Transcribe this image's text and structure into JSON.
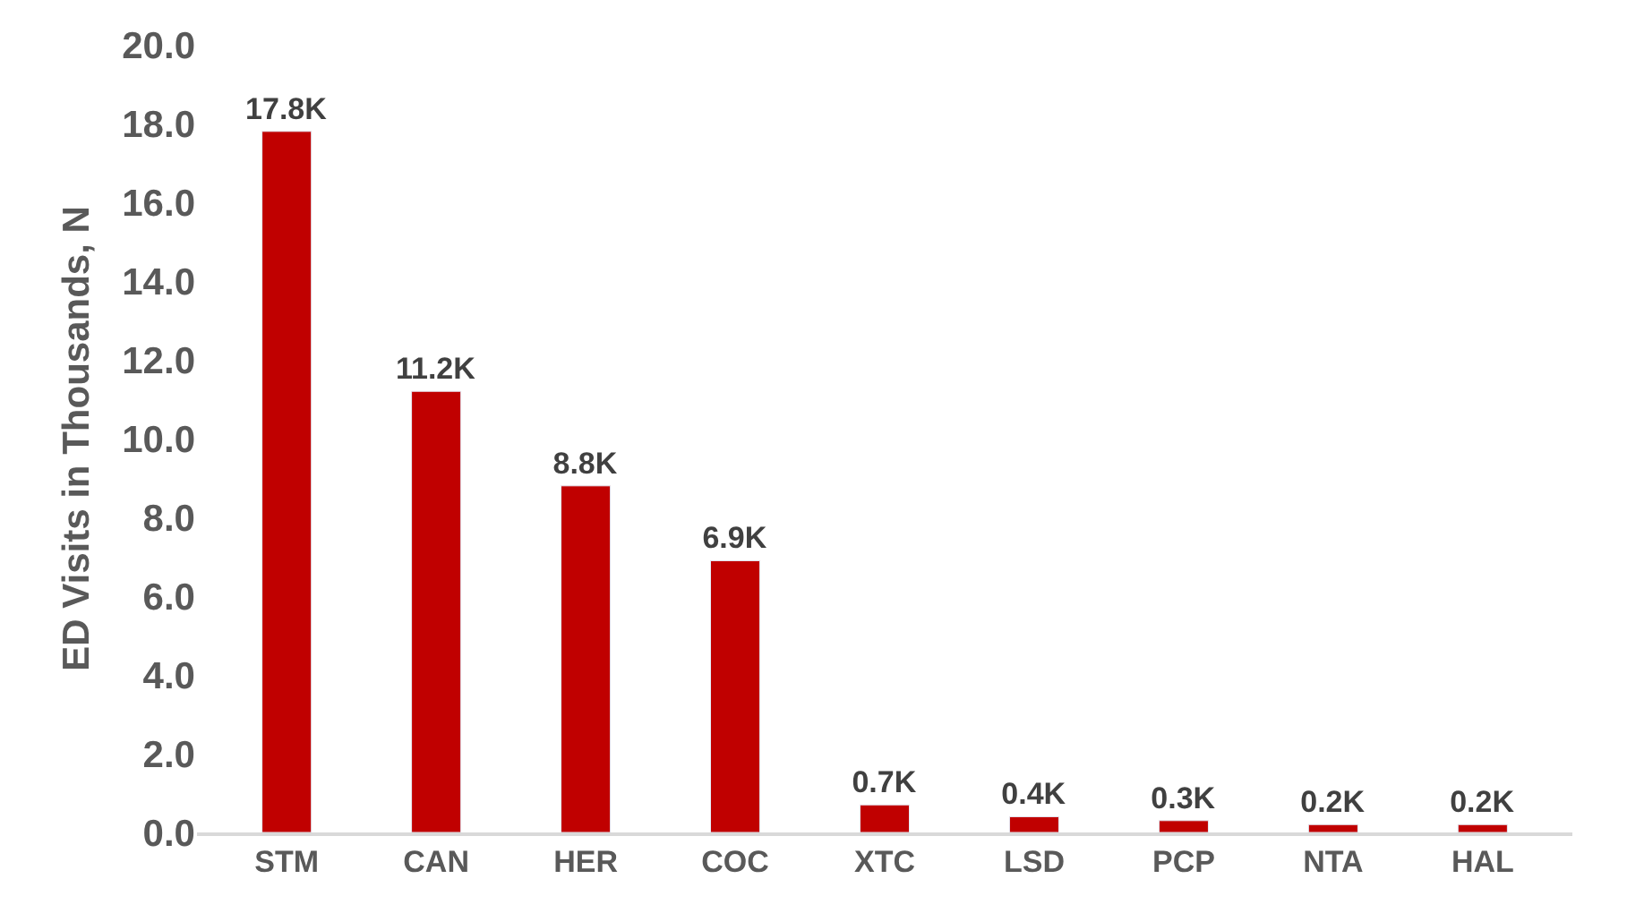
{
  "chart_data": {
    "type": "bar",
    "ylabel": "ED Visits in Thousands, N",
    "categories": [
      "STM",
      "CAN",
      "HER",
      "COC",
      "XTC",
      "LSD",
      "PCP",
      "NTA",
      "HAL"
    ],
    "values": [
      17.8,
      11.2,
      8.8,
      6.9,
      0.7,
      0.4,
      0.3,
      0.2,
      0.2
    ],
    "value_labels": [
      "17.8K",
      "11.2K",
      "8.8K",
      "6.9K",
      "0.7K",
      "0.4K",
      "0.3K",
      "0.2K",
      "0.2K"
    ],
    "color": "#c00000",
    "ylim": [
      0,
      20
    ],
    "yticks": [
      {
        "value": 0,
        "label": "0.0"
      },
      {
        "value": 2,
        "label": "2.0"
      },
      {
        "value": 4,
        "label": "4.0"
      },
      {
        "value": 6,
        "label": "6.0"
      },
      {
        "value": 8,
        "label": "8.0"
      },
      {
        "value": 10,
        "label": "10.0"
      },
      {
        "value": 12,
        "label": "12.0"
      },
      {
        "value": 14,
        "label": "14.0"
      },
      {
        "value": 16,
        "label": "16.0"
      },
      {
        "value": 18,
        "label": "18.0"
      },
      {
        "value": 20,
        "label": "20.0"
      }
    ],
    "orientation": "vertical"
  }
}
